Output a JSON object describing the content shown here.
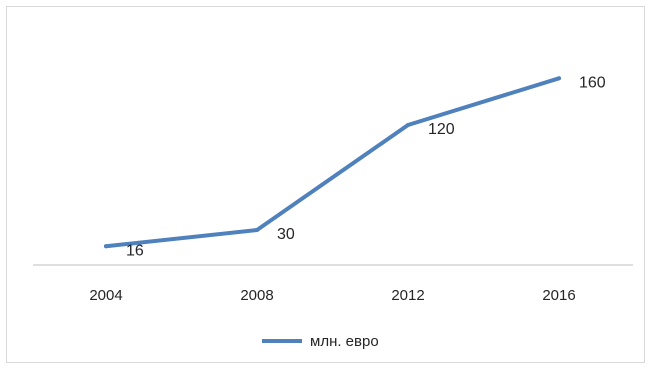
{
  "chart_data": {
    "type": "line",
    "categories": [
      "2004",
      "2008",
      "2012",
      "2016"
    ],
    "series": [
      {
        "name": "млн. евро",
        "values": [
          16,
          30,
          120,
          160
        ],
        "color": "#4f81bd"
      }
    ],
    "data_labels": [
      "16",
      "30",
      "120",
      "160"
    ],
    "title": "",
    "xlabel": "",
    "ylabel": "",
    "ylim": [
      0,
      180
    ],
    "grid": false,
    "legend": "bottom",
    "y_axis_visible": false
  }
}
